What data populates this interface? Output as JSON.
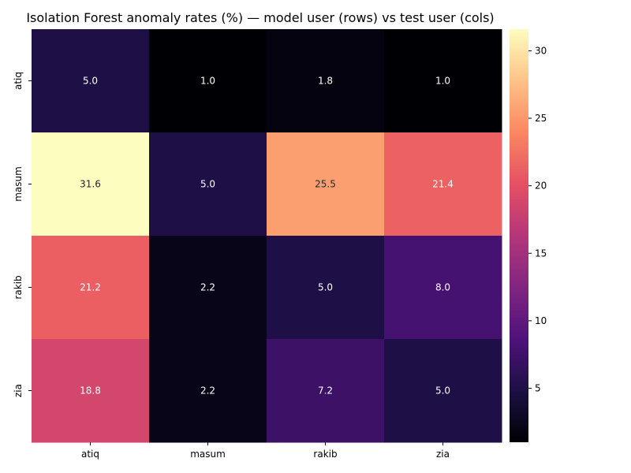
{
  "chart_data": {
    "type": "heatmap",
    "title": "Isolation Forest anomaly rates (%) — model user (rows) vs test user (cols)",
    "xlabel": "",
    "ylabel": "",
    "rows": [
      "atiq",
      "masum",
      "rakib",
      "zia"
    ],
    "cols": [
      "atiq",
      "masum",
      "rakib",
      "zia"
    ],
    "values": [
      [
        5.0,
        1.0,
        1.8,
        1.0
      ],
      [
        31.6,
        5.0,
        25.5,
        21.4
      ],
      [
        21.2,
        2.2,
        5.0,
        8.0
      ],
      [
        18.8,
        2.2,
        7.2,
        5.0
      ]
    ],
    "value_labels": [
      [
        "5.0",
        "1.0",
        "1.8",
        "1.0"
      ],
      [
        "31.6",
        "5.0",
        "25.5",
        "21.4"
      ],
      [
        "21.2",
        "2.2",
        "5.0",
        "8.0"
      ],
      [
        "18.8",
        "2.2",
        "7.2",
        "5.0"
      ]
    ],
    "colormap": "magma",
    "vmin": 1.0,
    "vmax": 31.6,
    "colorbar_ticks": [
      5,
      10,
      15,
      20,
      25,
      30
    ],
    "colorbar_tick_labels": [
      "5",
      "10",
      "15",
      "20",
      "25",
      "30"
    ]
  }
}
